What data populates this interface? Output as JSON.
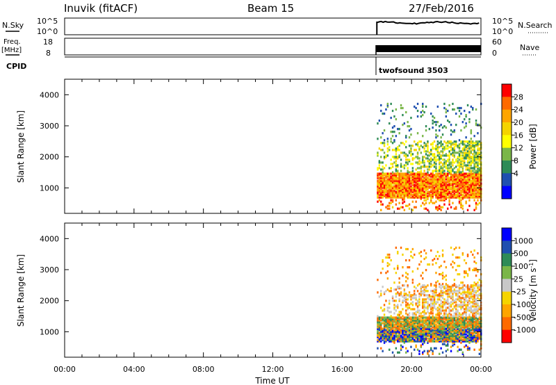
{
  "header": {
    "site": "Inuvik (fitACF)",
    "beam": "Beam 15",
    "date": "27/Feb/2016"
  },
  "strips": {
    "nsky": {
      "label": "N.Sky",
      "ticks": [
        "10^5",
        "10^0"
      ]
    },
    "nsearch": {
      "label": "N.Search",
      "ticks": [
        "10^5",
        "10^0"
      ]
    },
    "freq": {
      "label_line1": "Freq.",
      "label_line2": "[MHz]",
      "ticks": [
        "18",
        "8"
      ]
    },
    "nave": {
      "label": "Nave",
      "ticks": [
        "60",
        "0"
      ]
    },
    "cpid": {
      "label": "CPID",
      "program": "twofsound 3503"
    }
  },
  "colors": {
    "power": [
      "#0000ff",
      "#1f4fb0",
      "#2e8b57",
      "#7ab648",
      "#ffff00",
      "#f5d400",
      "#ffa500",
      "#ff6a00",
      "#ff0000"
    ],
    "velocity": [
      "#ff0000",
      "#ff6a00",
      "#ffa500",
      "#f5d400",
      "#c8c8c8",
      "#7ab648",
      "#2e8b57",
      "#1f4fb0",
      "#0000ff"
    ]
  },
  "chart_data": [
    {
      "type": "heatmap",
      "panel": "power",
      "xlabel": "",
      "ylabel": "Slant Range [km]",
      "ylim": [
        180,
        4500
      ],
      "xlim": [
        "00:00",
        "24:00"
      ],
      "yticks": [
        "4000",
        "3000",
        "2000",
        "1000"
      ],
      "colorbar_label": "Power [dB]",
      "colorbar_ticks": [
        "28",
        "24",
        "20",
        "16",
        "12",
        "8",
        "4"
      ],
      "data_start": "18:00",
      "data_end": "24:00",
      "bands": [
        {
          "range_km": [
            600,
            1400
          ],
          "dominant": "red/orange"
        },
        {
          "range_km": [
            1400,
            2500
          ],
          "dominant": "green/yellow"
        },
        {
          "range_km": [
            2500,
            3700
          ],
          "dominant": "blue/green sparse"
        }
      ]
    },
    {
      "type": "heatmap",
      "panel": "velocity",
      "xlabel": "Time UT",
      "ylabel": "Slant Range [km]",
      "ylim": [
        180,
        4500
      ],
      "xlim": [
        "00:00",
        "24:00"
      ],
      "yticks": [
        "4000",
        "3000",
        "2000",
        "1000"
      ],
      "xticks": [
        "00:00",
        "04:00",
        "08:00",
        "12:00",
        "16:00",
        "20:00",
        "00:00"
      ],
      "colorbar_label": "Velocity [m s",
      "colorbar_label_sup": "-1",
      "colorbar_label_end": "]",
      "colorbar_ticks": [
        "1000",
        "500",
        "100",
        "25",
        "-25",
        "-100",
        "-500",
        "-1000"
      ],
      "data_start": "18:00",
      "data_end": "24:00",
      "bands": [
        {
          "range_km": [
            600,
            1400
          ],
          "dominant": "blue/green/orange"
        },
        {
          "range_km": [
            1400,
            2500
          ],
          "dominant": "grey/orange"
        },
        {
          "range_km": [
            2500,
            3700
          ],
          "dominant": "orange sparse"
        }
      ]
    }
  ]
}
